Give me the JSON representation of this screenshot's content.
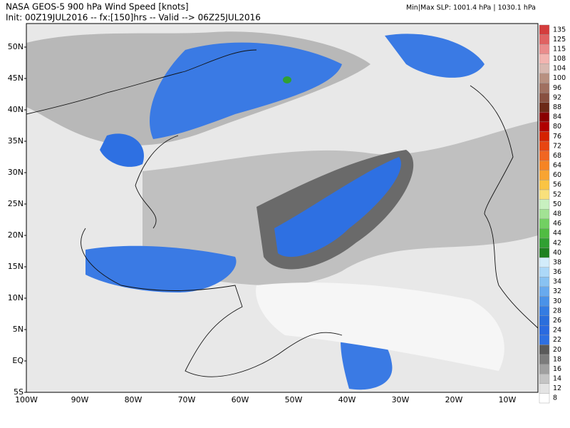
{
  "header": {
    "title": "NASA GEOS-5 900 hPa Wind Speed [knots]",
    "subtitle": "Init: 00Z19JUL2016 -- fx:[150]hrs -- Valid --> 06Z25JUL2016",
    "slp": "Min|Max SLP: 1001.4 hPa | 1030.1 hPa"
  },
  "map": {
    "lat_labels": [
      "50N",
      "45N",
      "40N",
      "35N",
      "30N",
      "25N",
      "20N",
      "15N",
      "10N",
      "5N",
      "EQ",
      "5S"
    ],
    "lon_labels": [
      "100W",
      "90W",
      "80W",
      "70W",
      "60W",
      "50W",
      "40W",
      "30W",
      "20W",
      "10W"
    ]
  },
  "colorbar": {
    "levels": [
      {
        "label": "135",
        "color": "#d43c3c"
      },
      {
        "label": "125",
        "color": "#e06262"
      },
      {
        "label": "115",
        "color": "#ea8c8c"
      },
      {
        "label": "108",
        "color": "#f2b4b0"
      },
      {
        "label": "104",
        "color": "#d8b8b0"
      },
      {
        "label": "100",
        "color": "#b89080"
      },
      {
        "label": "96",
        "color": "#a07060"
      },
      {
        "label": "92",
        "color": "#885040"
      },
      {
        "label": "88",
        "color": "#6c2a18"
      },
      {
        "label": "84",
        "color": "#8a0000"
      },
      {
        "label": "80",
        "color": "#b00000"
      },
      {
        "label": "76",
        "color": "#d42200"
      },
      {
        "label": "72",
        "color": "#e84612"
      },
      {
        "label": "68",
        "color": "#f06622"
      },
      {
        "label": "64",
        "color": "#f58424"
      },
      {
        "label": "60",
        "color": "#f8a432"
      },
      {
        "label": "56",
        "color": "#fac444"
      },
      {
        "label": "52",
        "color": "#f8e07c"
      },
      {
        "label": "50",
        "color": "#c8f0c0"
      },
      {
        "label": "48",
        "color": "#a2e294"
      },
      {
        "label": "46",
        "color": "#72d062"
      },
      {
        "label": "44",
        "color": "#50bc42"
      },
      {
        "label": "42",
        "color": "#30a032"
      },
      {
        "label": "40",
        "color": "#1e8020"
      },
      {
        "label": "38",
        "color": "#d2ecfa"
      },
      {
        "label": "36",
        "color": "#acd8f8"
      },
      {
        "label": "34",
        "color": "#88c2f2"
      },
      {
        "label": "32",
        "color": "#68aaee"
      },
      {
        "label": "30",
        "color": "#4a92e8"
      },
      {
        "label": "28",
        "color": "#347ce2"
      },
      {
        "label": "26",
        "color": "#2a6edc"
      },
      {
        "label": "24",
        "color": "#2a6ae0"
      },
      {
        "label": "22",
        "color": "#2e70e2"
      },
      {
        "label": "20",
        "color": "#5a5a5a"
      },
      {
        "label": "18",
        "color": "#7c7c7c"
      },
      {
        "label": "16",
        "color": "#a0a0a0"
      },
      {
        "label": "14",
        "color": "#c4c4c4"
      },
      {
        "label": "12",
        "color": "#e4e4e4"
      },
      {
        "label": "8",
        "color": "#ffffff"
      }
    ]
  }
}
